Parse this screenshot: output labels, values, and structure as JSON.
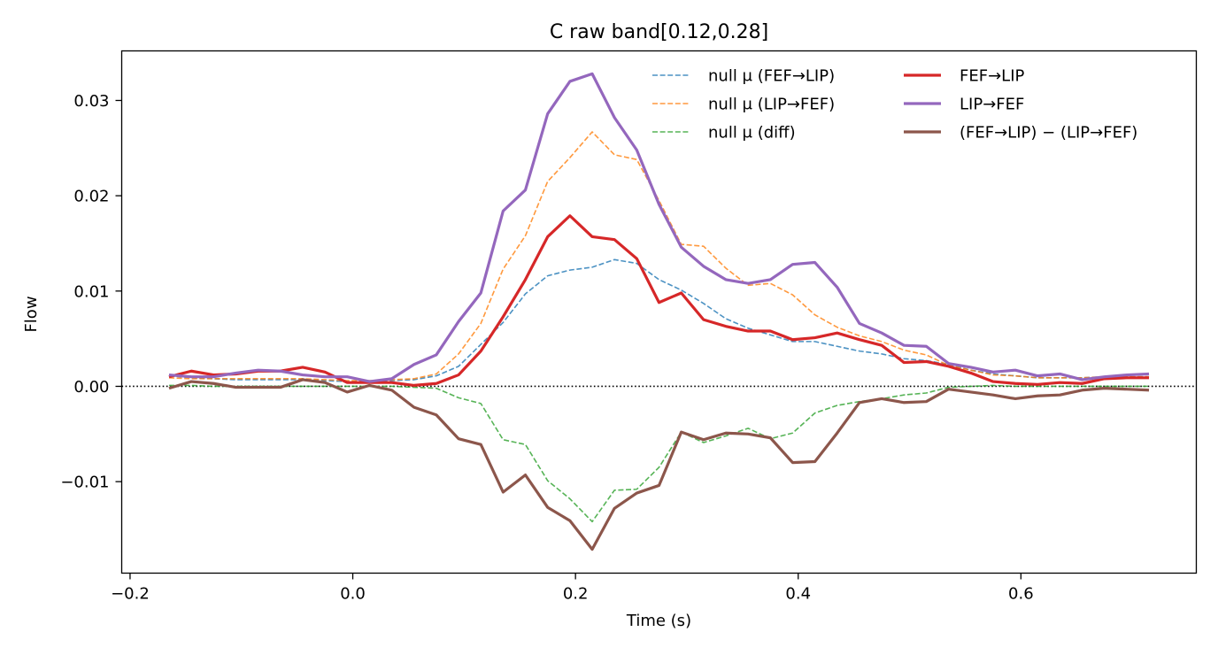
{
  "chart_data": {
    "type": "line",
    "title": "C raw   band[0.12,0.28]",
    "xlabel": "Time (s)",
    "ylabel": "Flow",
    "xlim": [
      -0.2075,
      0.7575
    ],
    "ylim": [
      -0.0196,
      0.0352
    ],
    "xticks": [
      -0.2,
      0.0,
      0.2,
      0.4,
      0.6
    ],
    "xtick_labels": [
      "−0.2",
      "0.0",
      "0.2",
      "0.4",
      "0.6"
    ],
    "yticks": [
      -0.01,
      0.0,
      0.01,
      0.02,
      0.03
    ],
    "ytick_labels": [
      "−0.01",
      "0.00",
      "0.01",
      "0.02",
      "0.03"
    ],
    "grid": false,
    "legend_placement": "top-right, two columns",
    "reference_line": {
      "y": 0.0,
      "style": "dotted",
      "color": "#000000"
    },
    "x": [
      -0.165,
      -0.145,
      -0.125,
      -0.105,
      -0.085,
      -0.065,
      -0.045,
      -0.025,
      -0.005,
      0.015,
      0.035,
      0.055,
      0.075,
      0.095,
      0.115,
      0.135,
      0.155,
      0.175,
      0.195,
      0.215,
      0.235,
      0.255,
      0.275,
      0.295,
      0.315,
      0.335,
      0.355,
      0.375,
      0.395,
      0.415,
      0.435,
      0.455,
      0.475,
      0.495,
      0.515,
      0.535,
      0.555,
      0.575,
      0.595,
      0.615,
      0.635,
      0.655,
      0.675,
      0.695,
      0.715
    ],
    "series": [
      {
        "name": "null μ (FEF→LIP)",
        "color": "#1f77b4",
        "style": "dashed",
        "width": 1.6,
        "opacity": 0.8,
        "values": [
          0.0011,
          0.0009,
          0.0008,
          0.0007,
          0.0007,
          0.0007,
          0.0007,
          0.0006,
          0.0005,
          0.0005,
          0.0006,
          0.0007,
          0.0011,
          0.0021,
          0.0044,
          0.0067,
          0.0097,
          0.0116,
          0.0122,
          0.0125,
          0.0133,
          0.0129,
          0.0112,
          0.0101,
          0.0087,
          0.0071,
          0.0061,
          0.0054,
          0.0047,
          0.0047,
          0.0042,
          0.0037,
          0.0034,
          0.0029,
          0.0027,
          0.0023,
          0.0017,
          0.0013,
          0.0011,
          0.0009,
          0.0009,
          0.0009,
          0.001,
          0.001,
          0.001
        ]
      },
      {
        "name": "null μ (LIP→FEF)",
        "color": "#ff7f0e",
        "style": "dashed",
        "width": 1.6,
        "opacity": 0.8,
        "values": [
          0.0009,
          0.0008,
          0.0008,
          0.0008,
          0.0008,
          0.0008,
          0.0008,
          0.0007,
          0.0006,
          0.0006,
          0.0007,
          0.0008,
          0.0013,
          0.0034,
          0.0066,
          0.0123,
          0.0158,
          0.0215,
          0.024,
          0.0267,
          0.0243,
          0.0238,
          0.0195,
          0.0149,
          0.0147,
          0.0124,
          0.0106,
          0.0108,
          0.0096,
          0.0075,
          0.0062,
          0.0053,
          0.0047,
          0.0038,
          0.0033,
          0.0022,
          0.0017,
          0.0012,
          0.0011,
          0.0009,
          0.0009,
          0.0009,
          0.001,
          0.001,
          0.001
        ]
      },
      {
        "name": "null μ (diff)",
        "color": "#2ca02c",
        "style": "dashed",
        "width": 1.6,
        "opacity": 0.8,
        "values": [
          0.0001,
          0.0001,
          0.0,
          0.0,
          0.0,
          0.0,
          0.0,
          0.0,
          0.0,
          0.0,
          0.0,
          -0.0001,
          -0.0002,
          -0.0012,
          -0.0018,
          -0.0056,
          -0.0061,
          -0.0099,
          -0.0118,
          -0.0142,
          -0.0109,
          -0.0108,
          -0.0085,
          -0.0048,
          -0.0059,
          -0.0052,
          -0.0044,
          -0.0055,
          -0.0049,
          -0.0028,
          -0.002,
          -0.0016,
          -0.0013,
          -0.0009,
          -0.0007,
          -0.0001,
          0.0,
          0.0001,
          0.0,
          0.0,
          0.0,
          0.0,
          0.0,
          0.0,
          0.0
        ]
      },
      {
        "name": "FEF→LIP",
        "color": "#d62728",
        "style": "solid",
        "width": 3.2,
        "opacity": 1,
        "values": [
          0.001,
          0.0016,
          0.0012,
          0.0013,
          0.0016,
          0.0016,
          0.002,
          0.0015,
          0.0004,
          0.0004,
          0.0004,
          0.0001,
          0.0003,
          0.0012,
          0.0037,
          0.0073,
          0.0112,
          0.0157,
          0.0179,
          0.0157,
          0.0154,
          0.0134,
          0.0088,
          0.0098,
          0.007,
          0.0063,
          0.0058,
          0.0058,
          0.0049,
          0.0051,
          0.0056,
          0.0049,
          0.0043,
          0.0025,
          0.0026,
          0.0021,
          0.0014,
          0.0005,
          0.0003,
          0.0002,
          0.0004,
          0.0003,
          0.0008,
          0.0009,
          0.0009
        ]
      },
      {
        "name": "LIP→FEF",
        "color": "#9467bd",
        "style": "solid",
        "width": 3.2,
        "opacity": 1,
        "values": [
          0.0012,
          0.001,
          0.001,
          0.0014,
          0.0017,
          0.0016,
          0.0012,
          0.001,
          0.001,
          0.0005,
          0.0008,
          0.0023,
          0.0033,
          0.0068,
          0.0098,
          0.0184,
          0.0206,
          0.0286,
          0.032,
          0.0328,
          0.0282,
          0.0248,
          0.0191,
          0.0146,
          0.0126,
          0.0112,
          0.0108,
          0.0112,
          0.0128,
          0.013,
          0.0104,
          0.0066,
          0.0056,
          0.0043,
          0.0042,
          0.0024,
          0.002,
          0.0015,
          0.0017,
          0.0011,
          0.0013,
          0.0007,
          0.001,
          0.0012,
          0.0013
        ]
      },
      {
        "name": "(FEF→LIP) − (LIP→FEF)",
        "color": "#8c564b",
        "style": "solid",
        "width": 3.2,
        "opacity": 1,
        "values": [
          -0.0002,
          0.0005,
          0.0003,
          -0.0001,
          -0.0001,
          -0.0001,
          0.0007,
          0.0004,
          -0.0006,
          0.0001,
          -0.0004,
          -0.0022,
          -0.003,
          -0.0055,
          -0.0061,
          -0.0111,
          -0.0093,
          -0.0127,
          -0.0141,
          -0.0171,
          -0.0128,
          -0.0112,
          -0.0104,
          -0.0048,
          -0.0056,
          -0.0049,
          -0.005,
          -0.0054,
          -0.008,
          -0.0079,
          -0.0049,
          -0.0017,
          -0.0013,
          -0.0017,
          -0.0016,
          -0.0003,
          -0.0006,
          -0.0009,
          -0.0013,
          -0.001,
          -0.0009,
          -0.0004,
          -0.0002,
          -0.0003,
          -0.0004
        ]
      }
    ]
  }
}
